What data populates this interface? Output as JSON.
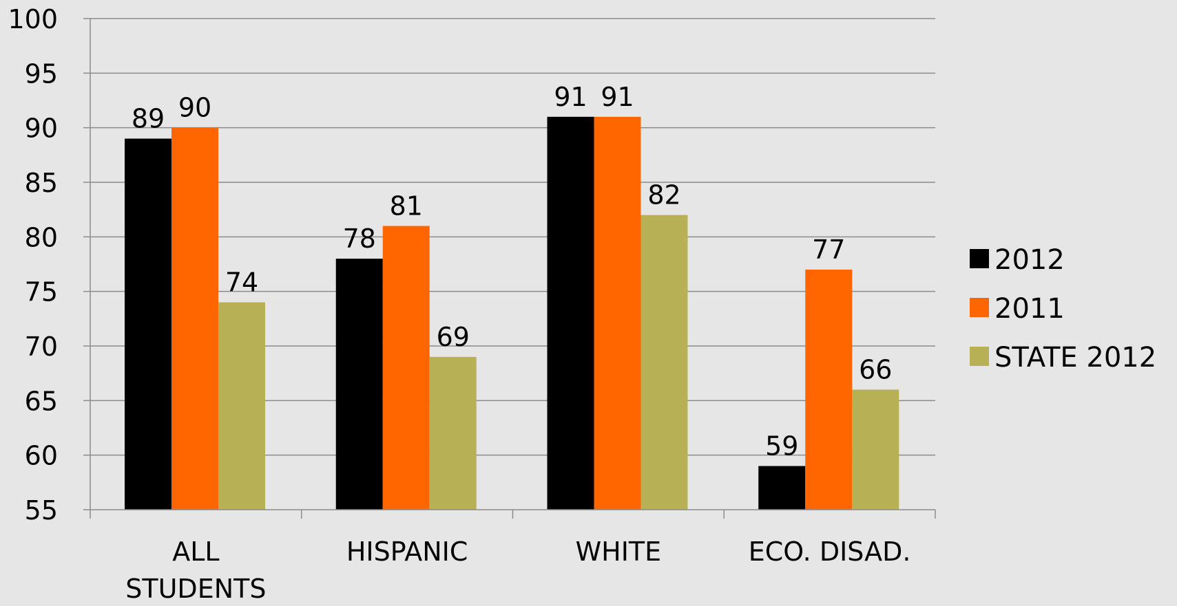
{
  "chart_data": {
    "type": "bar",
    "title": "",
    "xlabel": "",
    "ylabel": "",
    "ylim": [
      55,
      100
    ],
    "yticks": [
      55,
      60,
      65,
      70,
      75,
      80,
      85,
      90,
      95,
      100
    ],
    "grid": true,
    "legend_position": "right",
    "categories": [
      [
        "ALL",
        "STUDENTS"
      ],
      [
        "HISPANIC"
      ],
      [
        "WHITE"
      ],
      [
        "ECO. DISAD."
      ]
    ],
    "series": [
      {
        "name": "2012",
        "color": "#000000",
        "values": [
          89,
          78,
          91,
          59
        ]
      },
      {
        "name": "2011",
        "color": "#ff6600",
        "values": [
          90,
          81,
          91,
          77
        ]
      },
      {
        "name": "STATE 2012",
        "color": "#b8b055",
        "values": [
          74,
          69,
          82,
          66
        ]
      }
    ]
  },
  "colors": {
    "background": "#e6e6e6",
    "gridline": "#8c8c8c",
    "axis": "#8c8c8c"
  }
}
